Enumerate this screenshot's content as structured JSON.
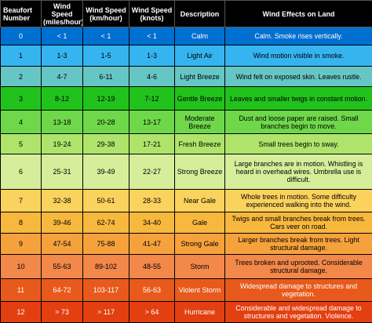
{
  "headers": {
    "beaufort": "Beaufort Number",
    "mph": "Wind Speed (miles/hour)",
    "kmh": "Wind Speed (km/hour)",
    "knots": "Wind Speed (knots)",
    "description": "Description",
    "effects": "Wind Effects on Land"
  },
  "rows": [
    {
      "num": "0",
      "mph": "< 1",
      "kmh": "< 1",
      "knots": "< 1",
      "desc": "Calm",
      "effect": "Calm. Smoke rises vertically."
    },
    {
      "num": "1",
      "mph": "1-3",
      "kmh": "1-5",
      "knots": "1-3",
      "desc": "Light Air",
      "effect": "Wind motion visible in smoke."
    },
    {
      "num": "2",
      "mph": "4-7",
      "kmh": "6-11",
      "knots": "4-6",
      "desc": "Light Breeze",
      "effect": "Wind felt on exposed skin. Leaves rustle."
    },
    {
      "num": "3",
      "mph": "8-12",
      "kmh": "12-19",
      "knots": "7-12",
      "desc": "Gentle Breeze",
      "effect": "Leaves and smaller twigs in constant motion."
    },
    {
      "num": "4",
      "mph": "13-18",
      "kmh": "20-28",
      "knots": "13-17",
      "desc": "Moderate Breeze",
      "effect": "Dust and loose paper are raised. Small branches begin to move."
    },
    {
      "num": "5",
      "mph": "19-24",
      "kmh": "29-38",
      "knots": "17-21",
      "desc": "Fresh Breeze",
      "effect": "Small trees begin to sway."
    },
    {
      "num": "6",
      "mph": "25-31",
      "kmh": "39-49",
      "knots": "22-27",
      "desc": "Strong Breeze",
      "effect": "Large branches are in motion. Whistling is heard in overhead wires. Umbrella use is difficult."
    },
    {
      "num": "7",
      "mph": "32-38",
      "kmh": "50-61",
      "knots": "28-33",
      "desc": "Near Gale",
      "effect": "Whole trees in motion. Some difficulty experienced walking into the wind."
    },
    {
      "num": "8",
      "mph": "39-46",
      "kmh": "62-74",
      "knots": "34-40",
      "desc": "Gale",
      "effect": "Twigs and small branches break from trees. Cars veer on road."
    },
    {
      "num": "9",
      "mph": "47-54",
      "kmh": "75-88",
      "knots": "41-47",
      "desc": "Strong Gale",
      "effect": "Larger branches break from trees. Light structural damage."
    },
    {
      "num": "10",
      "mph": "55-63",
      "kmh": "89-102",
      "knots": "48-55",
      "desc": "Storm",
      "effect": "Trees broken and uprooted. Considerable structural damage."
    },
    {
      "num": "11",
      "mph": "64-72",
      "kmh": "103-117",
      "knots": "56-63",
      "desc": "Violent Storm",
      "effect": "Widespread damage to structures and vegetation."
    },
    {
      "num": "12",
      "mph": "> 73",
      "kmh": "> 117",
      "knots": "> 64",
      "desc": "Hurricane",
      "effect": "Considerable and widespread damage to structures and vegetation. Violence."
    }
  ]
}
